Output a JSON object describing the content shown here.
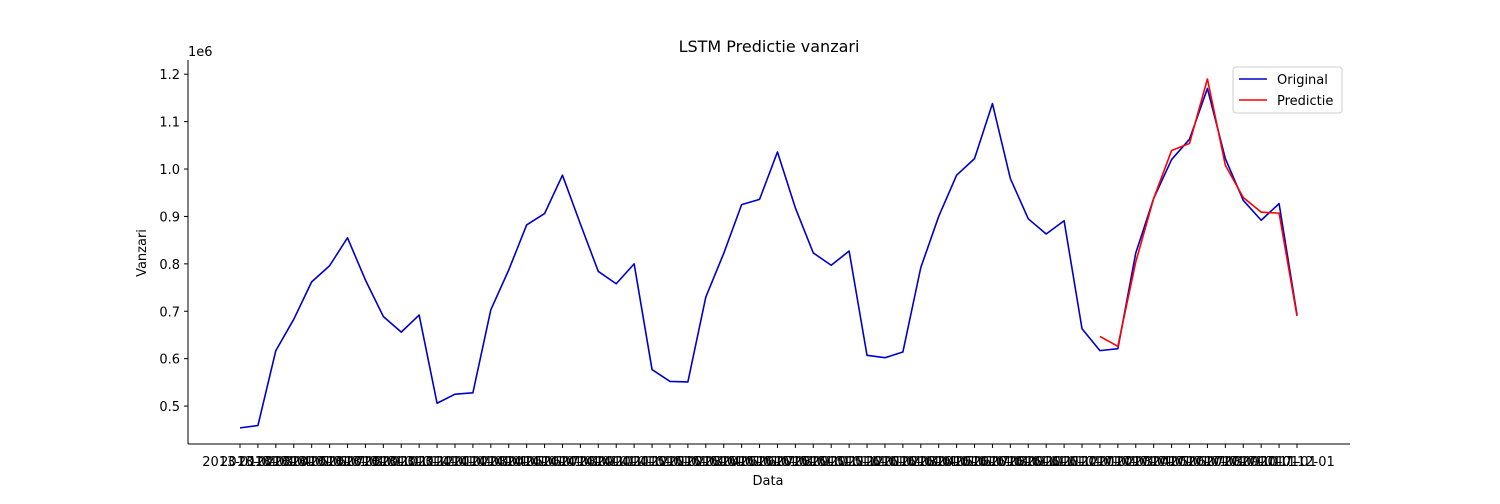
{
  "chart_data": {
    "type": "line",
    "title": "LSTM Predictie vanzari",
    "xlabel": "Data",
    "ylabel": "Vanzari",
    "y_offset_label": "1e6",
    "ylim": [
      0.42,
      1.23
    ],
    "yticks": [
      0.5,
      0.6,
      0.7,
      0.8,
      0.9,
      1.0,
      1.1,
      1.2
    ],
    "ytick_labels": [
      "0.5",
      "0.6",
      "0.7",
      "0.8",
      "0.9",
      "1.0",
      "1.1",
      "1.2"
    ],
    "grid": false,
    "legend_position": "top-right",
    "x_dates": [
      "2013-01-01",
      "2013-02-01",
      "2013-03-01",
      "2013-04-01",
      "2013-05-01",
      "2013-06-01",
      "2013-07-01",
      "2013-08-01",
      "2013-09-01",
      "2013-10-01",
      "2013-11-01",
      "2013-12-01",
      "2014-01-01",
      "2014-02-01",
      "2014-03-01",
      "2014-04-01",
      "2014-05-01",
      "2014-06-01",
      "2014-07-01",
      "2014-08-01",
      "2014-09-01",
      "2014-10-01",
      "2014-11-01",
      "2014-12-01",
      "2015-01-01",
      "2015-02-01",
      "2015-03-01",
      "2015-04-01",
      "2015-05-01",
      "2015-06-01",
      "2015-07-01",
      "2015-08-01",
      "2015-09-01",
      "2015-10-01",
      "2015-11-01",
      "2015-12-01",
      "2016-01-01",
      "2016-02-01",
      "2016-03-01",
      "2016-04-01",
      "2016-05-01",
      "2016-06-01",
      "2016-07-01",
      "2016-08-01",
      "2016-09-01",
      "2016-10-01",
      "2016-11-01",
      "2016-12-01",
      "2017-01-01",
      "2017-02-01",
      "2017-03-01",
      "2017-04-01",
      "2017-05-01",
      "2017-06-01",
      "2017-07-01",
      "2017-08-01",
      "2017-09-01",
      "2017-10-01",
      "2017-11-01",
      "2017-12-01"
    ],
    "series": [
      {
        "name": "Original",
        "color": "#0000cc",
        "start_index": 0,
        "values": [
          0.454,
          0.459,
          0.617,
          0.683,
          0.762,
          0.796,
          0.855,
          0.766,
          0.689,
          0.656,
          0.692,
          0.506,
          0.525,
          0.528,
          0.703,
          0.787,
          0.882,
          0.906,
          0.987,
          0.884,
          0.784,
          0.758,
          0.8,
          0.577,
          0.552,
          0.551,
          0.73,
          0.822,
          0.925,
          0.936,
          1.036,
          0.918,
          0.823,
          0.797,
          0.827,
          0.607,
          0.602,
          0.614,
          0.792,
          0.9,
          0.987,
          1.022,
          1.138,
          0.98,
          0.895,
          0.863,
          0.891,
          0.663,
          0.617,
          0.621,
          0.823,
          0.938,
          1.02,
          1.063,
          1.17,
          1.022,
          0.934,
          0.892,
          0.927,
          0.693
        ]
      },
      {
        "name": "Predictie",
        "color": "#ff0000",
        "start_index": 48,
        "values": [
          0.647,
          0.626,
          0.804,
          0.938,
          1.039,
          1.054,
          1.19,
          1.008,
          0.94,
          0.909,
          0.907,
          0.69
        ]
      }
    ]
  }
}
